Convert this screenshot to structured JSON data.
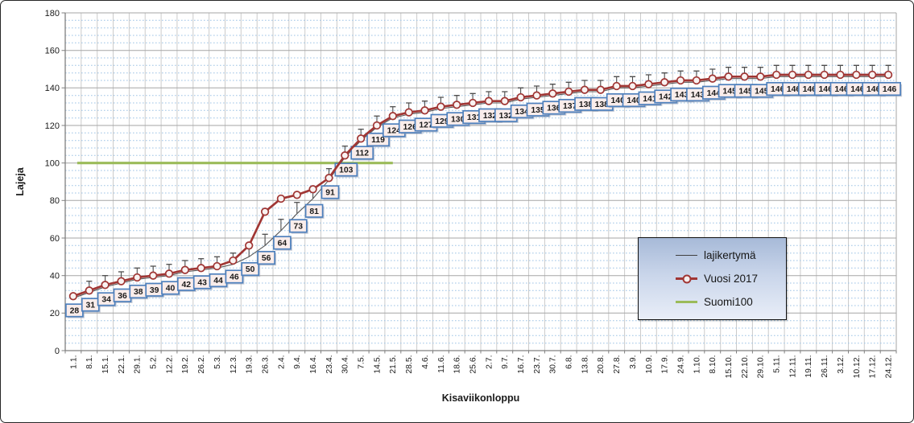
{
  "axes": {
    "y_title": "Lajeja",
    "x_title": "Kisaviikonloppu"
  },
  "colors": {
    "red_series": "#a03634",
    "thin_series": "#595959",
    "suomi100": "#9bbb59",
    "label_box_fill": "#faedeb",
    "label_box_border": "#4e80bd",
    "minor_grid": "#9dc3e6",
    "major_grid": "#a6a6a6",
    "vertical_grid": "#cbcbcb",
    "axis_line": "#7f7f7f",
    "error_bar": "#4d4d4d"
  },
  "chart_data": {
    "type": "line",
    "title": "",
    "xlabel": "Kisaviikonloppu",
    "ylabel": "Lajeja",
    "ylim": [
      0,
      180
    ],
    "y_major_step": 20,
    "y_minor_step": 4,
    "grid": true,
    "legend_position": "inside-right",
    "categories": [
      "1.1.",
      "8.1.",
      "15.1.",
      "22.1.",
      "29.1.",
      "5.2.",
      "12.2.",
      "19.2.",
      "26.2.",
      "5.3.",
      "12.3.",
      "19.3.",
      "26.3.",
      "2.4.",
      "9.4.",
      "16.4.",
      "23.4.",
      "30.4.",
      "7.5.",
      "14.5.",
      "21.5.",
      "28.5.",
      "4.6.",
      "11.6.",
      "18.6.",
      "25.6.",
      "2.7.",
      "9.7.",
      "16.7.",
      "23.7.",
      "30.7.",
      "6.8.",
      "13.8.",
      "20.8.",
      "27.8.",
      "3.9.",
      "10.9.",
      "17.9.",
      "24.9.",
      "1.10.",
      "8.10.",
      "15.10.",
      "22.10.",
      "29.10.",
      "5.11.",
      "12.11.",
      "19.11.",
      "26.11.",
      "3.12.",
      "10.12.",
      "17.12.",
      "24.12."
    ],
    "series": [
      {
        "name": "lajikertymä",
        "style": "thin-line",
        "color": "#595959",
        "data_labels": true,
        "values": [
          28,
          31,
          34,
          36,
          38,
          39,
          40,
          42,
          43,
          44,
          46,
          50,
          56,
          64,
          73,
          81,
          91,
          103,
          112,
          119,
          124,
          126,
          127,
          129,
          130,
          131,
          132,
          132,
          134,
          135,
          136,
          137,
          138,
          138,
          140,
          140,
          141,
          142,
          143,
          143,
          144,
          145,
          145,
          145,
          146,
          146,
          146,
          146,
          146,
          146,
          146,
          146
        ]
      },
      {
        "name": "Vuosi 2017",
        "style": "line-circle-marker",
        "color": "#a03634",
        "values": [
          29,
          32,
          35,
          37,
          39,
          40,
          41,
          43,
          44,
          45,
          48,
          56,
          74,
          81,
          83,
          86,
          92,
          104,
          113,
          120,
          125,
          127,
          128,
          130,
          131,
          132,
          133,
          133,
          135,
          136,
          137,
          138,
          139,
          139,
          141,
          141,
          142,
          143,
          144,
          144,
          145,
          146,
          146,
          146,
          147,
          147,
          147,
          147,
          147,
          147,
          147,
          147
        ]
      },
      {
        "name": "Suomi100",
        "style": "hline",
        "color": "#9bbb59",
        "y": 100,
        "span_categories": [
          0.75,
          20.5
        ]
      }
    ],
    "error_bars": {
      "series_index": 0,
      "plus": 6,
      "start_index": 1
    }
  }
}
